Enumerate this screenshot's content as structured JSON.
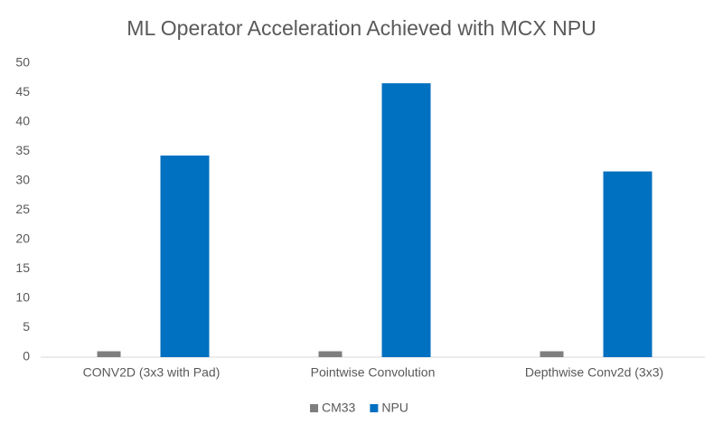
{
  "chart_data": {
    "type": "bar",
    "title": "ML Operator Acceleration Achieved with MCX NPU",
    "categories": [
      "CONV2D (3x3 with Pad)",
      "Pointwise Convolution",
      "Depthwise Conv2d (3x3)"
    ],
    "series": [
      {
        "name": "CM33",
        "color": "#7f7f7f",
        "values": [
          1,
          1,
          1
        ]
      },
      {
        "name": "NPU",
        "color": "#0070c0",
        "values": [
          34.3,
          46.6,
          31.6
        ]
      }
    ],
    "ylim": [
      0,
      50
    ],
    "yticks": [
      0,
      5,
      10,
      15,
      20,
      25,
      30,
      35,
      40,
      45,
      50
    ],
    "grid": false,
    "legend": "bottom"
  }
}
